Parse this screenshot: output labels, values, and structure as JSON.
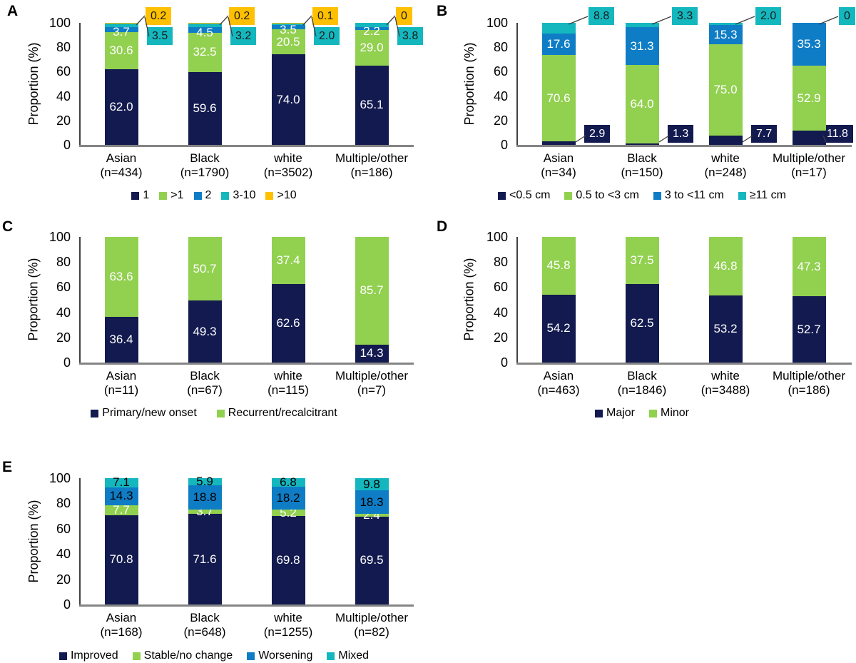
{
  "colors": {
    "navy": "#121A4F",
    "green": "#92D050",
    "blue": "#0F7DC5",
    "teal": "#14B7BE",
    "yellow": "#FFC000"
  },
  "chart_data": [
    {
      "panel": "A",
      "type": "bar",
      "stacked": true,
      "title": "",
      "ylabel": "Proportion (%)",
      "ylim": [
        0,
        100
      ],
      "yticks": [
        0,
        20,
        40,
        60,
        80,
        100
      ],
      "legend_position": "bottom",
      "grid": false,
      "categories": [
        {
          "label": "Asian",
          "n": "(n=434)"
        },
        {
          "label": "Black",
          "n": "(n=1790)"
        },
        {
          "label": "white",
          "n": "(n=3502)"
        },
        {
          "label": "Multiple/other",
          "n": "(n=186)"
        }
      ],
      "series": [
        {
          "name": "1",
          "color": "navy",
          "display": "bar",
          "label_color": "#FFFFFF",
          "values": [
            "62.0",
            "59.6",
            "74.0",
            "65.1"
          ]
        },
        {
          "name": ">1",
          "color": "green",
          "display": "bar",
          "label_color": "#FFFFFF",
          "values": [
            "30.6",
            "32.5",
            "20.5",
            "29.0"
          ]
        },
        {
          "name": "2",
          "color": "blue",
          "display": "bar",
          "label_color": "#FFFFFF",
          "label_dy": 4,
          "values": [
            "3.7",
            "4.5",
            "3.5",
            "2.2"
          ]
        },
        {
          "name": "3-10",
          "color": "teal",
          "display": "box_upper",
          "label_color": "#1A1A1A",
          "values": [
            "3.5",
            "3.2",
            "2.0",
            "3.8"
          ]
        },
        {
          "name": ">10",
          "color": "yellow",
          "display": "box_top",
          "label_color": "#1A1A1A",
          "values": [
            "0.2",
            "0.2",
            "0.1",
            "0"
          ]
        }
      ]
    },
    {
      "panel": "B",
      "type": "bar",
      "stacked": true,
      "title": "",
      "ylabel": "Proportion (%)",
      "ylim": [
        0,
        100
      ],
      "yticks": [
        0,
        20,
        40,
        60,
        80,
        100
      ],
      "legend_position": "bottom",
      "grid": false,
      "categories": [
        {
          "label": "Asian",
          "n": "(n=34)"
        },
        {
          "label": "Black",
          "n": "(n=150)"
        },
        {
          "label": "white",
          "n": "(n=248)"
        },
        {
          "label": "Multiple/other",
          "n": "(n=17)"
        }
      ],
      "series": [
        {
          "name": "<0.5 cm",
          "color": "navy",
          "display": "box_bottom",
          "label_color": "#FFFFFF",
          "values": [
            "2.9",
            "1.3",
            "7.7",
            "11.8"
          ]
        },
        {
          "name": "0.5 to <3 cm",
          "color": "green",
          "display": "bar",
          "label_color": "#FFFFFF",
          "values": [
            "70.6",
            "64.0",
            "75.0",
            "52.9"
          ]
        },
        {
          "name": "3 to <11 cm",
          "color": "blue",
          "display": "bar",
          "label_color": "#FFFFFF",
          "values": [
            "17.6",
            "31.3",
            "15.3",
            "35.3"
          ]
        },
        {
          "name": "≥11 cm",
          "color": "teal",
          "display": "box_top",
          "label_color": "#1A1A1A",
          "values": [
            "8.8",
            "3.3",
            "2.0",
            "0"
          ]
        }
      ]
    },
    {
      "panel": "C",
      "type": "bar",
      "stacked": true,
      "title": "",
      "ylabel": "Proportion (%)",
      "ylim": [
        0,
        100
      ],
      "yticks": [
        0,
        20,
        40,
        60,
        80,
        100
      ],
      "legend_position": "bottom",
      "grid": false,
      "categories": [
        {
          "label": "Asian",
          "n": "(n=11)"
        },
        {
          "label": "Black",
          "n": "(n=67)"
        },
        {
          "label": "white",
          "n": "(n=115)"
        },
        {
          "label": "Multiple/other",
          "n": "(n=7)"
        }
      ],
      "series": [
        {
          "name": "Primary/new onset",
          "color": "navy",
          "display": "bar",
          "label_color": "#FFFFFF",
          "values": [
            "36.4",
            "49.3",
            "62.6",
            "14.3"
          ]
        },
        {
          "name": "Recurrent/recalcitrant",
          "color": "green",
          "display": "bar",
          "label_color": "#FFFFFF",
          "values": [
            "63.6",
            "50.7",
            "37.4",
            "85.7"
          ]
        }
      ]
    },
    {
      "panel": "D",
      "type": "bar",
      "stacked": true,
      "title": "",
      "ylabel": "Proportion (%)",
      "ylim": [
        0,
        100
      ],
      "yticks": [
        0,
        20,
        40,
        60,
        80,
        100
      ],
      "legend_position": "bottom",
      "grid": false,
      "categories": [
        {
          "label": "Asian",
          "n": "(n=463)"
        },
        {
          "label": "Black",
          "n": "(n=1846)"
        },
        {
          "label": "white",
          "n": "(n=3488)"
        },
        {
          "label": "Multiple/other",
          "n": "(n=186)"
        }
      ],
      "series": [
        {
          "name": "Major",
          "color": "navy",
          "display": "bar",
          "label_color": "#FFFFFF",
          "values": [
            "54.2",
            "62.5",
            "53.2",
            "52.7"
          ]
        },
        {
          "name": "Minor",
          "color": "green",
          "display": "bar",
          "label_color": "#FFFFFF",
          "values": [
            "45.8",
            "37.5",
            "46.8",
            "47.3"
          ]
        }
      ]
    },
    {
      "panel": "E",
      "type": "bar",
      "stacked": true,
      "title": "",
      "ylabel": "Proportion (%)",
      "ylim": [
        0,
        100
      ],
      "yticks": [
        0,
        20,
        40,
        60,
        80,
        100
      ],
      "legend_position": "bottom",
      "grid": false,
      "categories": [
        {
          "label": "Asian",
          "n": "(n=168)"
        },
        {
          "label": "Black",
          "n": "(n=648)"
        },
        {
          "label": "white",
          "n": "(n=1255)"
        },
        {
          "label": "Multiple/other",
          "n": "(n=82)"
        }
      ],
      "series": [
        {
          "name": "Improved",
          "color": "navy",
          "display": "bar",
          "label_color": "#FFFFFF",
          "values": [
            "70.8",
            "71.6",
            "69.8",
            "69.5"
          ]
        },
        {
          "name": "Stable/no change",
          "color": "green",
          "display": "bar",
          "label_color": "#FFFFFF",
          "values": [
            "7.7",
            "3.7",
            "5.2",
            "2.4"
          ]
        },
        {
          "name": "Worsening",
          "color": "blue",
          "display": "bar",
          "label_color": "#000000",
          "values": [
            "14.3",
            "18.8",
            "18.2",
            "18.3"
          ]
        },
        {
          "name": "Mixed",
          "color": "teal",
          "display": "bar",
          "label_color": "#000000",
          "values": [
            "7.1",
            "5.9",
            "6.8",
            "9.8"
          ]
        }
      ]
    }
  ]
}
